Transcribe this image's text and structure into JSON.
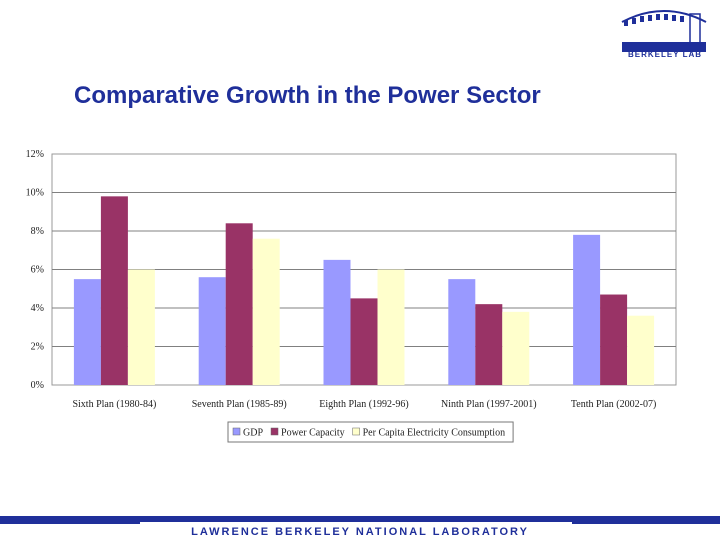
{
  "slide": {
    "title": "Comparative Growth in the Power Sector",
    "logo_text": "BERKELEY LAB",
    "footer": "LAWRENCE BERKELEY NATIONAL LABORATORY"
  },
  "colors": {
    "title": "#1f2f9a",
    "gdp": "#9999ff",
    "power": "#993366",
    "consumption": "#ffffcc",
    "plot_bg": "#ffffff",
    "gridline": "#808080"
  },
  "chart_data": {
    "type": "bar",
    "title": "",
    "xlabel": "",
    "ylabel": "",
    "ylim": [
      0,
      12
    ],
    "yticks": [
      0,
      2,
      4,
      6,
      8,
      10,
      12
    ],
    "ytick_labels": [
      "0%",
      "2%",
      "4%",
      "6%",
      "8%",
      "10%",
      "12%"
    ],
    "categories": [
      "Sixth Plan (1980-84)",
      "Seventh Plan (1985-89)",
      "Eighth Plan (1992-96)",
      "Ninth Plan (1997-2001)",
      "Tenth Plan (2002-07)"
    ],
    "series": [
      {
        "name": "GDP",
        "color_key": "gdp",
        "values": [
          5.5,
          5.6,
          6.5,
          5.5,
          7.8
        ]
      },
      {
        "name": "Power Capacity",
        "color_key": "power",
        "values": [
          9.8,
          8.4,
          4.5,
          4.2,
          4.7
        ]
      },
      {
        "name": "Per Capita Electricity Consumption",
        "color_key": "consumption",
        "values": [
          6.0,
          7.6,
          6.0,
          3.8,
          3.6
        ]
      }
    ],
    "legend_position": "bottom",
    "grid": true
  }
}
